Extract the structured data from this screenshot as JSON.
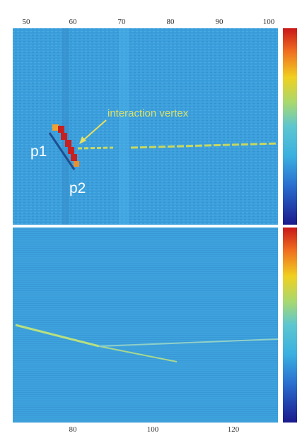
{
  "top_panel": {
    "x_ticks": [
      50,
      60,
      70,
      80,
      90,
      100
    ],
    "annotations": {
      "vertex": "interaction vertex",
      "p1": "p1",
      "p2": "p2"
    }
  },
  "bottom_panel": {
    "x_ticks": [
      80,
      100,
      120
    ]
  }
}
